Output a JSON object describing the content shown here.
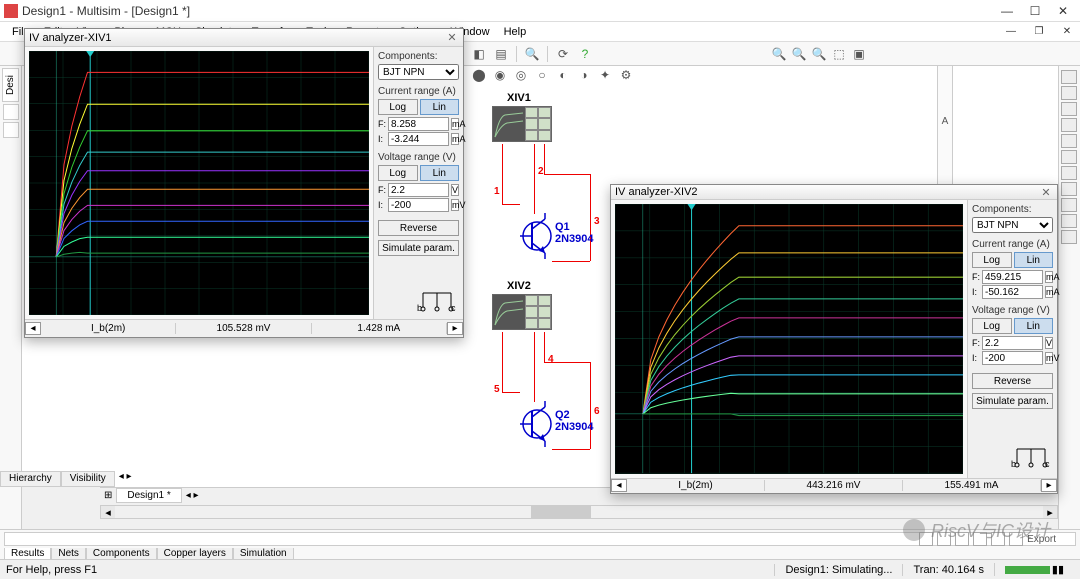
{
  "window": {
    "title": "Design1 - Multisim - [Design1 *]"
  },
  "menu": [
    "File",
    "Edit",
    "View",
    "Place",
    "MCU",
    "Simulate",
    "Transfer",
    "Tools",
    "Reports",
    "Options",
    "Window",
    "Help"
  ],
  "left_tab": "Desi",
  "hv_tabs": [
    "Hierarchy",
    "Visibility"
  ],
  "canvas_tab": "Design1 *",
  "bottom_tabs": [
    "Results",
    "Nets",
    "Components",
    "Copper layers",
    "Simulation"
  ],
  "bottom_right_export": "Export",
  "status": {
    "help": "For Help, press F1",
    "sim": "Design1: Simulating...",
    "tran": "Tran: 40.164 s"
  },
  "iv1": {
    "title": "IV analyzer-XIV1",
    "components_label": "Components:",
    "component_type": "BJT NPN",
    "current_range_label": "Current range (A)",
    "voltage_range_label": "Voltage range (V)",
    "log": "Log",
    "lin": "Lin",
    "F_label": "F:",
    "I_label": "I:",
    "current_F": "8.258",
    "current_F_unit": "mA",
    "current_I": "-3.244",
    "current_I_unit": "mA",
    "voltage_F": "2.2",
    "voltage_F_unit": "V",
    "voltage_I": "-200",
    "voltage_I_unit": "mV",
    "reverse": "Reverse",
    "sim_param": "Simulate param.",
    "status_ib": "I_b(2m)",
    "status_mid": "105.528 mV",
    "status_right": "1.428 mA",
    "plot": {
      "bg": "#000000",
      "grid_color": "#0e3d2c",
      "axis_color": "#22cc99",
      "marker_x": 0.18,
      "colors": [
        "#ff3333",
        "#ffff33",
        "#33cc33",
        "#33cccc",
        "#9933ff",
        "#ff9933",
        "#cc33cc",
        "#3366ff",
        "#33ff99",
        "#229944"
      ],
      "levels": [
        0.92,
        0.8,
        0.7,
        0.62,
        0.55,
        0.48,
        0.42,
        0.36,
        0.3,
        0.24
      ],
      "xlim": [
        0,
        1
      ],
      "ylim": [
        0,
        1
      ],
      "knee": 0.1
    }
  },
  "iv2": {
    "title": "IV analyzer-XIV2",
    "components_label": "Components:",
    "component_type": "BJT NPN",
    "current_range_label": "Current range (A)",
    "voltage_range_label": "Voltage range (V)",
    "log": "Log",
    "lin": "Lin",
    "F_label": "F:",
    "I_label": "I:",
    "current_F": "459.215",
    "current_F_unit": "mA",
    "current_I": "-50.162",
    "current_I_unit": "mA",
    "voltage_F": "2.2",
    "voltage_F_unit": "V",
    "voltage_I": "-200",
    "voltage_I_unit": "mV",
    "reverse": "Reverse",
    "sim_param": "Simulate param.",
    "status_ib": "I_b(2m)",
    "status_mid": "443.216 mV",
    "status_right": "155.491 mA",
    "plot": {
      "bg": "#000000",
      "grid_color": "#0e3d2c",
      "axis_color": "#22cc99",
      "marker_x": 0.22,
      "colors": [
        "#ff6633",
        "#ffcc33",
        "#99cc33",
        "#33cc99",
        "#cc3399",
        "#6699ff",
        "#cc66ff",
        "#33ccff",
        "#66ff99",
        "#229944"
      ],
      "levels": [
        0.92,
        0.82,
        0.73,
        0.65,
        0.58,
        0.51,
        0.44,
        0.37,
        0.3,
        0.22
      ],
      "xlim": [
        0,
        1
      ],
      "ylim": [
        0,
        1
      ],
      "knee": 0.3
    }
  },
  "schematic": {
    "xiv1_label": "XIV1",
    "xiv2_label": "XIV2",
    "q1_ref": "Q1",
    "q1_val": "2N3904",
    "q2_ref": "Q2",
    "q2_val": "2N3904",
    "net_nums": {
      "1": "1",
      "2": "2",
      "3": "3",
      "4": "4",
      "5": "5",
      "6": "6"
    },
    "wire_color": "#ee0000",
    "component_color": "#0000cc"
  },
  "ruler_letter": "A",
  "watermark": "RiscV与IC设计"
}
